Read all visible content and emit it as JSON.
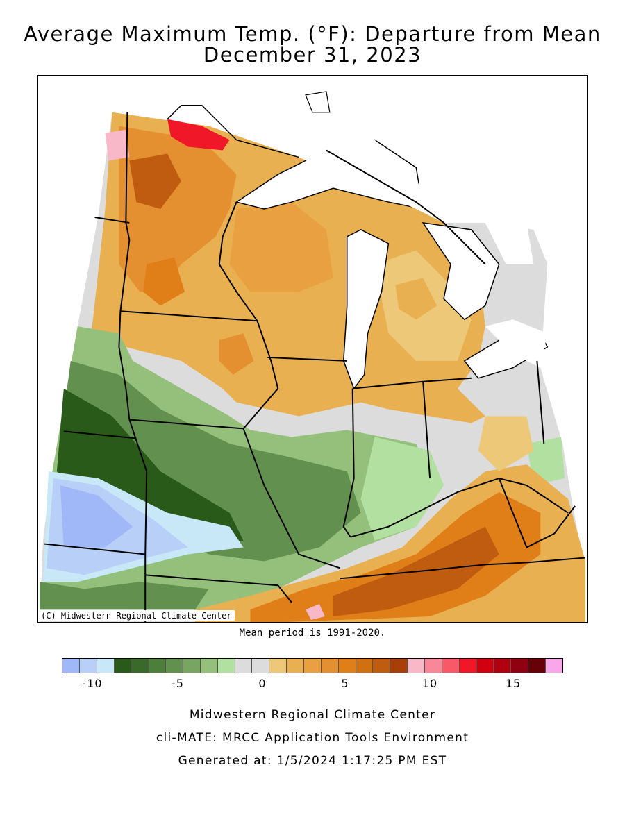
{
  "title": {
    "line1": "Average Maximum Temp. (°F): Departure from Mean",
    "line2": "December 31, 2023"
  },
  "map": {
    "copyright": "(C) Midwestern Regional Climate Center",
    "mean_period": "Mean period is 1991-2020."
  },
  "legend": {
    "colors": [
      "#a0b8f8",
      "#b8d0f8",
      "#c8e8f8",
      "#2a5a1a",
      "#3a6a2a",
      "#4e7e3c",
      "#62904e",
      "#78a662",
      "#94c07c",
      "#b2e0a0",
      "#dcdcdc",
      "#dcdcdc",
      "#ecc878",
      "#e8b050",
      "#e8a040",
      "#e49030",
      "#e07e18",
      "#d07010",
      "#c05c10",
      "#a83e08",
      "#f8b8c8",
      "#f88898",
      "#f85868",
      "#f01828",
      "#d00010",
      "#b00010",
      "#900010",
      "#680008",
      "#f8a8e8"
    ],
    "tick_labels": [
      "-10",
      "-5",
      "0",
      "5",
      "10",
      "15"
    ]
  },
  "footer": {
    "line1": "Midwestern Regional Climate Center",
    "line2": "cli-MATE: MRCC Application Tools Environment",
    "line3": "Generated at: 1/5/2024 1:17:25 PM EST"
  }
}
